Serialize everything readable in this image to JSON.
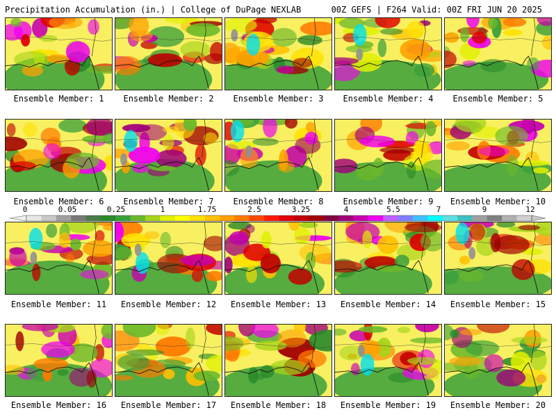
{
  "header": {
    "title": "Precipitation Accumulation (in.) | College of DuPage NEXLAB",
    "run_info": "00Z GEFS | F264 Valid: 00Z FRI JUN 20 2025"
  },
  "panels": [
    {
      "label": "Ensemble Member: 1"
    },
    {
      "label": "Ensemble Member: 2"
    },
    {
      "label": "Ensemble Member: 3"
    },
    {
      "label": "Ensemble Member: 4"
    },
    {
      "label": "Ensemble Member: 5"
    },
    {
      "label": "Ensemble Member: 6"
    },
    {
      "label": "Ensemble Member: 7"
    },
    {
      "label": "Ensemble Member: 8"
    },
    {
      "label": "Ensemble Member: 9"
    },
    {
      "label": "Ensemble Member: 10"
    },
    {
      "label": "Ensemble Member: 11"
    },
    {
      "label": "Ensemble Member: 12"
    },
    {
      "label": "Ensemble Member: 13"
    },
    {
      "label": "Ensemble Member: 14"
    },
    {
      "label": "Ensemble Member: 15"
    },
    {
      "label": "Ensemble Member: 16"
    },
    {
      "label": "Ensemble Member: 17"
    },
    {
      "label": "Ensemble Member: 18"
    },
    {
      "label": "Ensemble Member: 19"
    },
    {
      "label": "Ensemble Member: 20"
    }
  ],
  "legend": {
    "tick_labels": [
      "0",
      "0.05",
      "0.25",
      "1",
      "1.75",
      "2.5",
      "3.25",
      "4",
      "5.5",
      "7",
      "9",
      "12"
    ],
    "colors": [
      "#e8e8e8",
      "#c8c8c8",
      "#a0a0a0",
      "#787878",
      "#4a7a4a",
      "#2a8a2a",
      "#3aa03a",
      "#6ab82a",
      "#a6d41a",
      "#e0f000",
      "#ffff00",
      "#ffe000",
      "#ffc000",
      "#ffa000",
      "#ff7a00",
      "#ff4a00",
      "#ff1a00",
      "#e00000",
      "#c00000",
      "#a00000",
      "#800040",
      "#a0007a",
      "#c800b0",
      "#f000f0",
      "#c060ff",
      "#8080ff",
      "#40c0ff",
      "#00ffff",
      "#60e0e0",
      "#40c0c0",
      "#a0a0a0",
      "#808080",
      "#b0b0b0",
      "#d0d0d0"
    ]
  }
}
